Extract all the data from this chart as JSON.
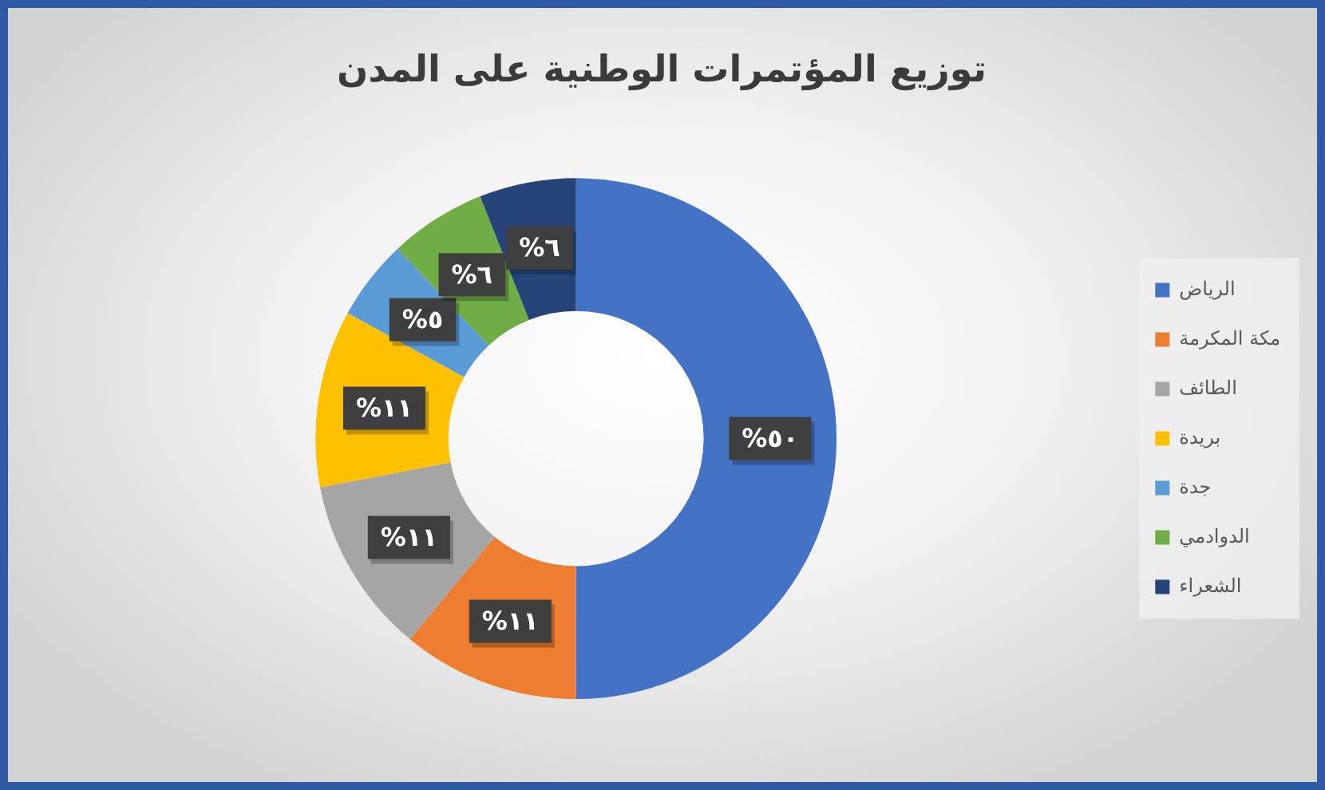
{
  "chart_data": {
    "type": "donut",
    "title": "توزيع المؤتمرات الوطنية على المدن",
    "categories": [
      "الرياض",
      "مكة المكرمة",
      "الطائف",
      "بريدة",
      "جدة",
      "الدوادمي",
      "الشعراء"
    ],
    "values": [
      50,
      11,
      11,
      11,
      5,
      6,
      6
    ],
    "colors": [
      "#4472c4",
      "#ed7d31",
      "#a5a5a5",
      "#ffc000",
      "#5b9bd5",
      "#70ad47",
      "#264478"
    ],
    "value_labels": [
      "%٥٠",
      "%١١",
      "%١١",
      "%١١",
      "%٥",
      "%٦",
      "%٦"
    ],
    "legend": "right"
  }
}
